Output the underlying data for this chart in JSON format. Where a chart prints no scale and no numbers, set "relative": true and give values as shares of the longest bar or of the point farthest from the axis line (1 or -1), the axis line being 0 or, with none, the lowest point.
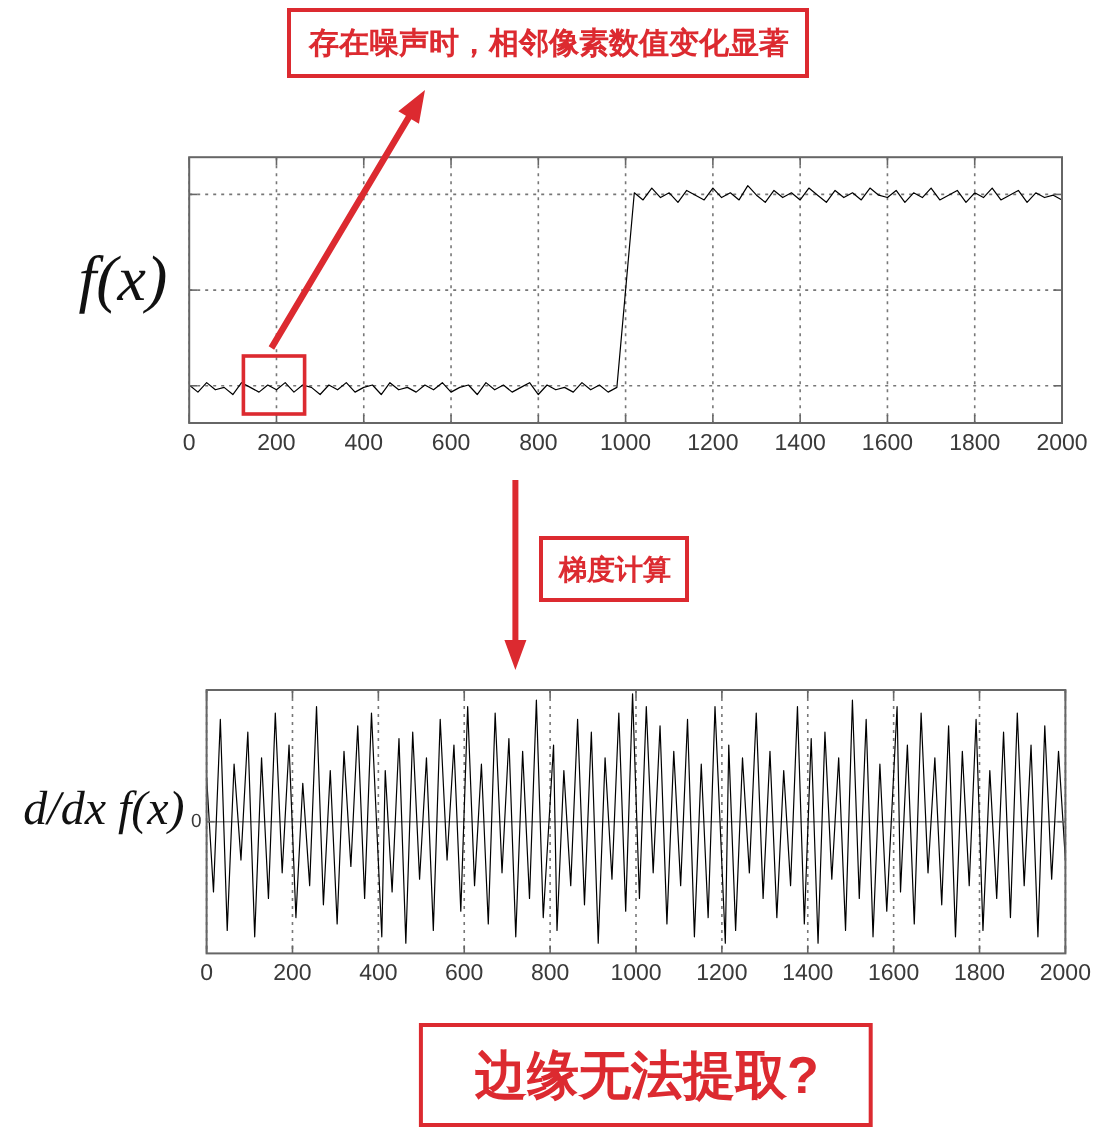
{
  "chart_data": [
    {
      "type": "line",
      "ylabel": "f(x)",
      "relative": true,
      "xlim": [
        0,
        2000
      ],
      "xticks": [
        0,
        200,
        400,
        600,
        800,
        1000,
        1200,
        1400,
        1600,
        1800,
        2000
      ],
      "grid": true,
      "tick_labels": "x",
      "series": [
        {
          "color": "#000000",
          "x": [
            0,
            20,
            40,
            60,
            80,
            100,
            120,
            140,
            160,
            180,
            200,
            220,
            240,
            260,
            280,
            300,
            320,
            340,
            360,
            380,
            400,
            420,
            440,
            460,
            480,
            500,
            520,
            540,
            560,
            580,
            600,
            620,
            640,
            660,
            680,
            700,
            720,
            740,
            760,
            780,
            800,
            820,
            840,
            860,
            880,
            900,
            920,
            940,
            960,
            980,
            1020,
            1040,
            1060,
            1080,
            1100,
            1120,
            1140,
            1160,
            1180,
            1200,
            1220,
            1240,
            1260,
            1280,
            1300,
            1320,
            1340,
            1360,
            1380,
            1400,
            1420,
            1440,
            1460,
            1480,
            1500,
            1520,
            1540,
            1560,
            1580,
            1600,
            1620,
            1640,
            1660,
            1680,
            1700,
            1720,
            1740,
            1760,
            1780,
            1800,
            1820,
            1840,
            1860,
            1880,
            1900,
            1920,
            1940,
            1960,
            1980,
            2000
          ],
          "values": [
            0.16,
            0.13,
            0.17,
            0.14,
            0.15,
            0.12,
            0.17,
            0.15,
            0.13,
            0.16,
            0.14,
            0.17,
            0.13,
            0.16,
            0.15,
            0.12,
            0.16,
            0.14,
            0.17,
            0.13,
            0.15,
            0.16,
            0.12,
            0.17,
            0.14,
            0.15,
            0.13,
            0.16,
            0.14,
            0.17,
            0.13,
            0.15,
            0.16,
            0.12,
            0.17,
            0.14,
            0.16,
            0.13,
            0.15,
            0.17,
            0.12,
            0.16,
            0.14,
            0.15,
            0.13,
            0.17,
            0.14,
            0.16,
            0.13,
            0.15,
            0.97,
            0.94,
            0.99,
            0.95,
            0.97,
            0.93,
            0.98,
            0.96,
            0.94,
            0.99,
            0.95,
            0.97,
            0.94,
            1,
            0.96,
            0.93,
            0.98,
            0.95,
            0.97,
            0.94,
            0.99,
            0.96,
            0.93,
            0.98,
            0.95,
            0.97,
            0.94,
            0.99,
            0.96,
            0.95,
            0.98,
            0.93,
            0.97,
            0.95,
            0.99,
            0.94,
            0.96,
            0.98,
            0.93,
            0.97,
            0.95,
            0.99,
            0.94,
            0.96,
            0.98,
            0.93,
            0.97,
            0.95,
            0.96,
            0.94
          ]
        }
      ],
      "annotations": [
        "存在噪声时，相邻像素数值变化显著"
      ]
    },
    {
      "type": "line",
      "ylabel": "d/dx f(x)",
      "relative": true,
      "xlim": [
        0,
        2000
      ],
      "xticks": [
        0,
        200,
        400,
        600,
        800,
        1000,
        1200,
        1400,
        1600,
        1800,
        2000
      ],
      "grid": "x",
      "ref_lines": [
        {
          "axis": "y",
          "value": 0,
          "label": "0",
          "color": "#8c8c8c"
        }
      ],
      "series": [
        {
          "color": "#000000",
          "x": [
            0,
            16,
            32,
            48,
            64,
            80,
            96,
            112,
            128,
            144,
            160,
            176,
            192,
            208,
            224,
            240,
            256,
            272,
            288,
            304,
            320,
            336,
            352,
            368,
            384,
            408,
            416,
            432,
            448,
            464,
            480,
            496,
            512,
            528,
            544,
            560,
            576,
            592,
            608,
            624,
            640,
            656,
            672,
            688,
            704,
            720,
            736,
            752,
            768,
            784,
            808,
            816,
            832,
            848,
            864,
            880,
            896,
            912,
            928,
            944,
            960,
            976,
            992,
            1008,
            1024,
            1040,
            1056,
            1072,
            1088,
            1104,
            1120,
            1136,
            1152,
            1168,
            1184,
            1208,
            1216,
            1232,
            1248,
            1264,
            1280,
            1296,
            1312,
            1328,
            1344,
            1360,
            1376,
            1392,
            1408,
            1424,
            1440,
            1456,
            1472,
            1488,
            1504,
            1520,
            1536,
            1552,
            1568,
            1584,
            1608,
            1616,
            1632,
            1648,
            1664,
            1680,
            1696,
            1712,
            1728,
            1744,
            1760,
            1776,
            1792,
            1808,
            1824,
            1840,
            1856,
            1872,
            1888,
            1904,
            1920,
            1936,
            1952,
            1968,
            1984,
            2000
          ],
          "values": [
            0.35,
            -0.55,
            0.8,
            -0.85,
            0.45,
            -0.3,
            0.7,
            -0.9,
            0.5,
            -0.6,
            0.85,
            -0.4,
            0.6,
            -0.75,
            0.3,
            -0.5,
            0.9,
            -0.65,
            0.4,
            -0.8,
            0.55,
            -0.35,
            0.75,
            -0.6,
            0.85,
            -0.9,
            0.4,
            -0.55,
            0.65,
            -0.95,
            0.7,
            -0.45,
            0.5,
            -0.85,
            0.8,
            -0.3,
            0.6,
            -0.7,
            0.9,
            -0.5,
            0.45,
            -0.8,
            0.85,
            -0.4,
            0.65,
            -0.9,
            0.55,
            -0.6,
            0.95,
            -0.75,
            0.6,
            -0.85,
            0.4,
            -0.5,
            0.8,
            -0.65,
            0.7,
            -0.95,
            0.5,
            -0.45,
            0.85,
            -0.7,
            1,
            -0.6,
            0.9,
            -0.4,
            0.75,
            -0.8,
            0.55,
            -0.5,
            0.8,
            -0.9,
            0.45,
            -0.75,
            0.9,
            -0.95,
            0.6,
            -0.85,
            0.5,
            -0.4,
            0.85,
            -0.6,
            0.55,
            -0.75,
            0.4,
            -0.5,
            0.9,
            -0.8,
            0.65,
            -0.95,
            0.7,
            -0.45,
            0.5,
            -0.85,
            0.95,
            -0.6,
            0.8,
            -0.9,
            0.45,
            -0.7,
            0.9,
            -0.55,
            0.6,
            -0.8,
            0.85,
            -0.4,
            0.5,
            -0.65,
            0.75,
            -0.9,
            0.55,
            -0.5,
            0.8,
            -0.85,
            0.4,
            -0.6,
            0.7,
            -0.75,
            0.85,
            -0.5,
            0.6,
            -0.9,
            0.75,
            -0.45,
            0.55,
            -0.3
          ]
        }
      ],
      "annotations": [
        "梯度计算",
        "边缘无法提取?"
      ]
    }
  ]
}
